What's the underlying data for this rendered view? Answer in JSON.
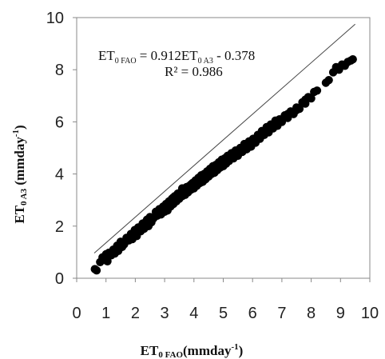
{
  "chart_data": {
    "type": "scatter",
    "title": "",
    "xlabel": {
      "main": "ET",
      "sub": "0 FAO",
      "rest": "(mmday",
      "sup": "-1",
      "end": ")"
    },
    "ylabel": {
      "main": "ET",
      "sub": "0 A3",
      "rest": " (mmday",
      "sup": "-1",
      "end": ")"
    },
    "xlim": [
      0,
      10
    ],
    "ylim": [
      0,
      10
    ],
    "x_ticks": [
      "0",
      "1",
      "2",
      "3",
      "4",
      "5",
      "6",
      "7",
      "8",
      "9",
      "10"
    ],
    "y_ticks": [
      "0",
      "2",
      "4",
      "6",
      "8",
      "10"
    ],
    "grid": false,
    "legend": "none",
    "marker_color": "#000000",
    "annotation": {
      "line1": {
        "a": "ET",
        "a_sub": "0 FAO",
        "b": " = 0.912ET",
        "b_sub": "0 A3",
        "c": " - 0.378"
      },
      "line2": "R² = 0.986"
    },
    "trendline": {
      "slope": 0.912,
      "intercept": -0.378,
      "note": "fit of x on y"
    },
    "series": [
      {
        "points": [
          [
            0.62,
            0.35
          ],
          [
            0.68,
            0.3
          ],
          [
            0.8,
            0.62
          ],
          [
            0.88,
            0.8
          ],
          [
            0.95,
            0.7
          ],
          [
            1.0,
            0.92
          ],
          [
            1.05,
            0.65
          ],
          [
            1.1,
            0.98
          ],
          [
            1.18,
            0.88
          ],
          [
            1.25,
            1.1
          ],
          [
            1.3,
            0.95
          ],
          [
            1.38,
            1.25
          ],
          [
            1.42,
            1.05
          ],
          [
            1.5,
            1.4
          ],
          [
            1.55,
            1.2
          ],
          [
            1.62,
            1.3
          ],
          [
            1.7,
            1.55
          ],
          [
            1.78,
            1.45
          ],
          [
            1.85,
            1.7
          ],
          [
            1.9,
            1.5
          ],
          [
            1.98,
            1.85
          ],
          [
            2.05,
            1.62
          ],
          [
            2.1,
            1.95
          ],
          [
            2.18,
            1.8
          ],
          [
            2.25,
            2.1
          ],
          [
            2.3,
            1.9
          ],
          [
            2.38,
            2.2
          ],
          [
            2.45,
            2.0
          ],
          [
            2.5,
            2.35
          ],
          [
            2.55,
            2.15
          ],
          [
            2.62,
            2.3
          ],
          [
            2.7,
            2.55
          ],
          [
            2.75,
            2.4
          ],
          [
            2.82,
            2.65
          ],
          [
            2.88,
            2.45
          ],
          [
            2.95,
            2.75
          ],
          [
            3.0,
            2.55
          ],
          [
            3.05,
            2.85
          ],
          [
            3.1,
            2.7
          ],
          [
            3.15,
            2.95
          ],
          [
            3.2,
            2.75
          ],
          [
            3.25,
            3.05
          ],
          [
            3.3,
            2.85
          ],
          [
            3.35,
            3.15
          ],
          [
            3.4,
            2.95
          ],
          [
            3.45,
            3.25
          ],
          [
            3.5,
            3.05
          ],
          [
            3.55,
            3.3
          ],
          [
            3.6,
            3.15
          ],
          [
            3.65,
            3.4
          ],
          [
            3.7,
            3.2
          ],
          [
            3.75,
            3.5
          ],
          [
            3.8,
            3.3
          ],
          [
            3.85,
            3.55
          ],
          [
            3.9,
            3.4
          ],
          [
            3.95,
            3.65
          ],
          [
            4.0,
            3.45
          ],
          [
            4.05,
            3.75
          ],
          [
            4.1,
            3.55
          ],
          [
            4.15,
            3.85
          ],
          [
            4.2,
            3.65
          ],
          [
            4.25,
            3.95
          ],
          [
            4.3,
            3.7
          ],
          [
            4.35,
            4.0
          ],
          [
            4.4,
            3.8
          ],
          [
            4.45,
            4.1
          ],
          [
            4.5,
            3.9
          ],
          [
            4.55,
            4.2
          ],
          [
            4.6,
            4.0
          ],
          [
            4.65,
            4.3
          ],
          [
            4.7,
            4.05
          ],
          [
            4.75,
            4.35
          ],
          [
            4.8,
            4.15
          ],
          [
            4.85,
            4.45
          ],
          [
            4.9,
            4.25
          ],
          [
            4.95,
            4.55
          ],
          [
            5.0,
            4.3
          ],
          [
            5.05,
            4.6
          ],
          [
            5.1,
            4.4
          ],
          [
            5.15,
            4.7
          ],
          [
            5.2,
            4.5
          ],
          [
            5.28,
            4.8
          ],
          [
            5.35,
            4.6
          ],
          [
            5.42,
            4.9
          ],
          [
            5.5,
            4.7
          ],
          [
            5.58,
            5.0
          ],
          [
            5.65,
            4.85
          ],
          [
            5.72,
            5.15
          ],
          [
            5.8,
            4.95
          ],
          [
            5.88,
            5.25
          ],
          [
            5.95,
            5.05
          ],
          [
            6.02,
            5.35
          ],
          [
            6.1,
            5.2
          ],
          [
            6.18,
            5.5
          ],
          [
            6.25,
            5.35
          ],
          [
            6.32,
            5.65
          ],
          [
            6.4,
            5.5
          ],
          [
            6.48,
            5.8
          ],
          [
            6.55,
            5.6
          ],
          [
            6.62,
            5.9
          ],
          [
            6.7,
            5.75
          ],
          [
            6.78,
            6.05
          ],
          [
            6.85,
            5.85
          ],
          [
            6.92,
            6.1
          ],
          [
            7.0,
            6.0
          ],
          [
            7.1,
            6.25
          ],
          [
            7.2,
            6.15
          ],
          [
            7.3,
            6.4
          ],
          [
            7.4,
            6.3
          ],
          [
            7.5,
            6.55
          ],
          [
            7.6,
            6.5
          ],
          [
            7.7,
            6.75
          ],
          [
            7.8,
            6.7
          ],
          [
            7.9,
            6.95
          ],
          [
            8.0,
            6.9
          ],
          [
            8.1,
            7.15
          ],
          [
            8.2,
            7.2
          ],
          [
            8.5,
            7.5
          ],
          [
            8.6,
            7.6
          ],
          [
            8.75,
            7.9
          ],
          [
            8.85,
            8.1
          ],
          [
            8.95,
            8.0
          ],
          [
            9.05,
            8.2
          ],
          [
            9.15,
            8.15
          ],
          [
            9.25,
            8.3
          ],
          [
            9.35,
            8.35
          ],
          [
            9.42,
            8.4
          ],
          [
            2.0,
            1.75
          ],
          [
            2.4,
            2.25
          ],
          [
            2.8,
            2.5
          ],
          [
            3.1,
            2.6
          ],
          [
            3.3,
            3.1
          ],
          [
            3.6,
            3.45
          ],
          [
            3.9,
            3.6
          ],
          [
            4.2,
            3.85
          ],
          [
            4.5,
            4.05
          ],
          [
            4.8,
            4.35
          ],
          [
            5.1,
            4.55
          ],
          [
            5.4,
            4.75
          ],
          [
            5.7,
            5.05
          ],
          [
            6.0,
            5.3
          ],
          [
            6.3,
            5.45
          ],
          [
            6.6,
            5.75
          ],
          [
            6.9,
            6.0
          ],
          [
            7.2,
            6.3
          ],
          [
            7.5,
            6.45
          ],
          [
            7.8,
            6.85
          ],
          [
            3.5,
            3.2
          ],
          [
            4.0,
            3.6
          ],
          [
            4.6,
            4.15
          ],
          [
            5.3,
            4.65
          ]
        ]
      }
    ]
  }
}
